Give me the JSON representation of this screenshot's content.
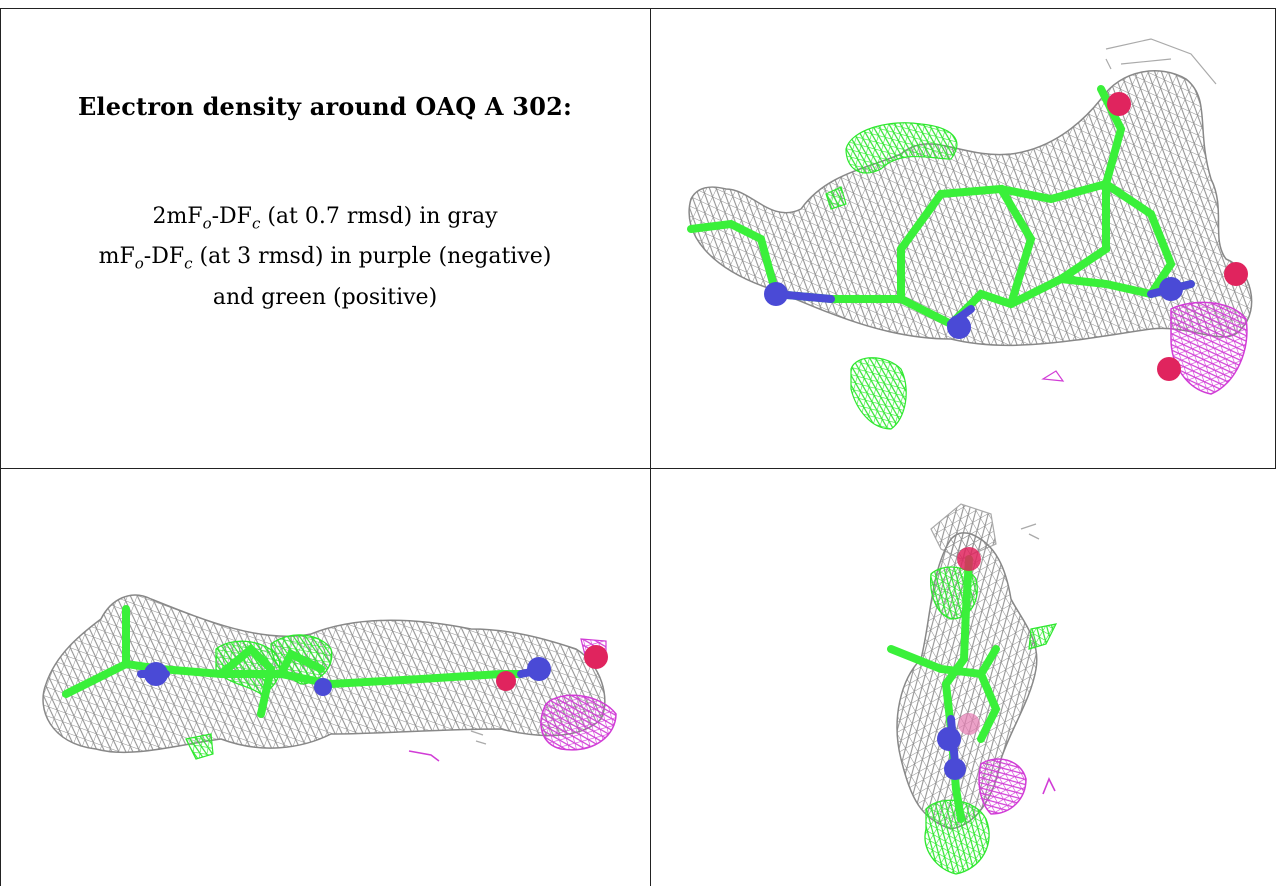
{
  "caption": {
    "title": "Electron density around OAQ A 302:",
    "line1": {
      "a": "2mF",
      "o": "o",
      "b": "-DF",
      "c": "c",
      "rest": " (at 0.7 rmsd) in gray"
    },
    "line2": {
      "a": "mF",
      "o": "o",
      "b": "-DF",
      "c": "c",
      "rest": " (at 3 rmsd) in purple (negative)"
    },
    "line3": "and green (positive)"
  },
  "colors": {
    "mesh_gray": "#9a9a9a",
    "carbon_green": "#3af03a",
    "nitrogen_blue": "#4a4ad6",
    "oxygen_red": "#e0245e",
    "difference_purple": "#d13cd6",
    "difference_green": "#2ee82e"
  },
  "panels": [
    {
      "name": "top-right view"
    },
    {
      "name": "bottom-left view"
    },
    {
      "name": "bottom-right view"
    }
  ]
}
